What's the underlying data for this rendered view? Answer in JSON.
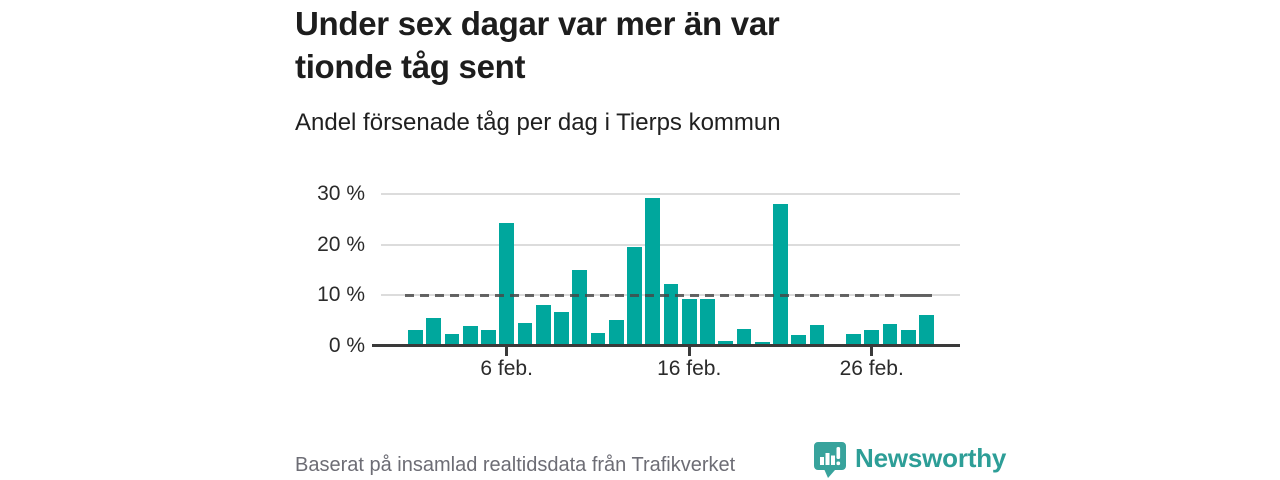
{
  "header": {
    "title_lines": [
      "Under sex dagar var mer än var",
      "tionde tåg sent"
    ],
    "subtitle": "Andel försenade tåg per dag i Tierps kommun"
  },
  "chart_data": {
    "type": "bar",
    "title": "Andel försenade tåg per dag i Tierps kommun",
    "unit": "%",
    "categories": [
      "1 feb.",
      "2 feb.",
      "3 feb.",
      "4 feb.",
      "5 feb.",
      "6 feb.",
      "7 feb.",
      "8 feb.",
      "9 feb.",
      "10 feb.",
      "11 feb.",
      "12 feb.",
      "13 feb.",
      "14 feb.",
      "15 feb.",
      "16 feb.",
      "17 feb.",
      "18 feb.",
      "19 feb.",
      "20 feb.",
      "21 feb.",
      "22 feb.",
      "23 feb.",
      "24 feb.",
      "25 feb.",
      "26 feb.",
      "27 feb.",
      "28 feb.",
      "29 feb."
    ],
    "values": [
      3.1,
      5.5,
      2.3,
      3.9,
      3.1,
      24.2,
      4.5,
      8.1,
      6.8,
      15.0,
      2.5,
      5.2,
      19.6,
      29.3,
      12.3,
      9.3,
      9.3,
      1.0,
      3.3,
      0.8,
      28.1,
      2.1,
      4.1,
      null,
      2.4,
      3.1,
      4.4,
      3.2,
      6.2
    ],
    "ylim": [
      0,
      30
    ],
    "grid": true,
    "y_axis_ticks": [
      {
        "value": 30,
        "label": "30 %"
      },
      {
        "value": 20,
        "label": "20 %"
      },
      {
        "value": 10,
        "label": "10 %"
      },
      {
        "value": 0,
        "label": "0 %"
      }
    ],
    "x_axis_ticks": [
      {
        "index": 5,
        "label": "6 feb."
      },
      {
        "index": 15,
        "label": "16 feb."
      },
      {
        "index": 25,
        "label": "26 feb."
      }
    ],
    "reference_line": {
      "value": 10,
      "style": "dashed"
    },
    "bar_color": "#00a79d"
  },
  "footer": {
    "source": "Baserat på insamlad realtidsdata från Trafikverket",
    "brand": "Newsworthy"
  },
  "colors": {
    "bar": "#00a79d",
    "brand_teal": "#2d9e97",
    "gridline": "#dcdcdc",
    "axis": "#3a3a3a",
    "title_text": "#1d1d1d",
    "footer_text": "#6d6d75"
  },
  "icons": {
    "brand_logo": "newsworthy-bubble-barchart-icon"
  }
}
